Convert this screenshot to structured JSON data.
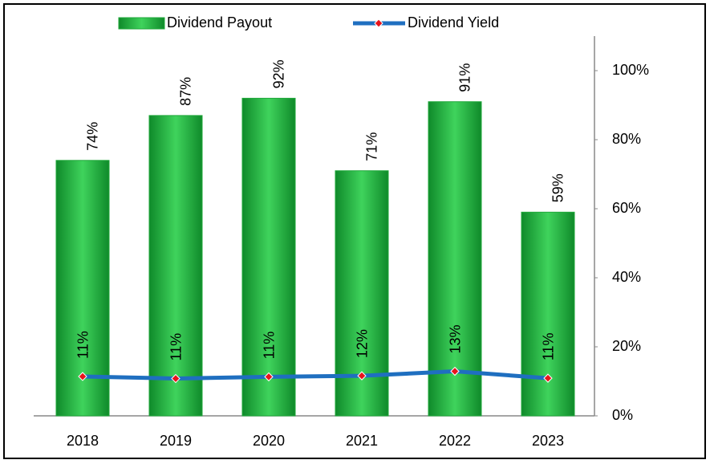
{
  "chart_data": {
    "type": "bar_line",
    "categories": [
      "2018",
      "2019",
      "2020",
      "2021",
      "2022",
      "2023"
    ],
    "series": [
      {
        "name": "Dividend Payout",
        "type": "bar",
        "color": "#1fa83a",
        "values": [
          74,
          87,
          92,
          71,
          91,
          59
        ],
        "value_labels": [
          "74%",
          "87%",
          "92%",
          "71%",
          "91%",
          "59%"
        ]
      },
      {
        "name": "Dividend Yield",
        "type": "line",
        "color": "#1f6fc0",
        "marker_color": "#e8141c",
        "values": [
          11.4,
          10.8,
          11.3,
          11.6,
          12.9,
          10.9
        ],
        "value_labels": [
          "11%",
          "11%",
          "11%",
          "12%",
          "13%",
          "11%"
        ]
      }
    ],
    "ylim": [
      0,
      110
    ],
    "yticks": [
      {
        "value": 0,
        "label": "0%"
      },
      {
        "value": 20,
        "label": "20%"
      },
      {
        "value": 40,
        "label": "40%"
      },
      {
        "value": 60,
        "label": "60%"
      },
      {
        "value": 80,
        "label": "80%"
      },
      {
        "value": 100,
        "label": "100%"
      }
    ],
    "y_axis_side": "right",
    "grid": false
  }
}
